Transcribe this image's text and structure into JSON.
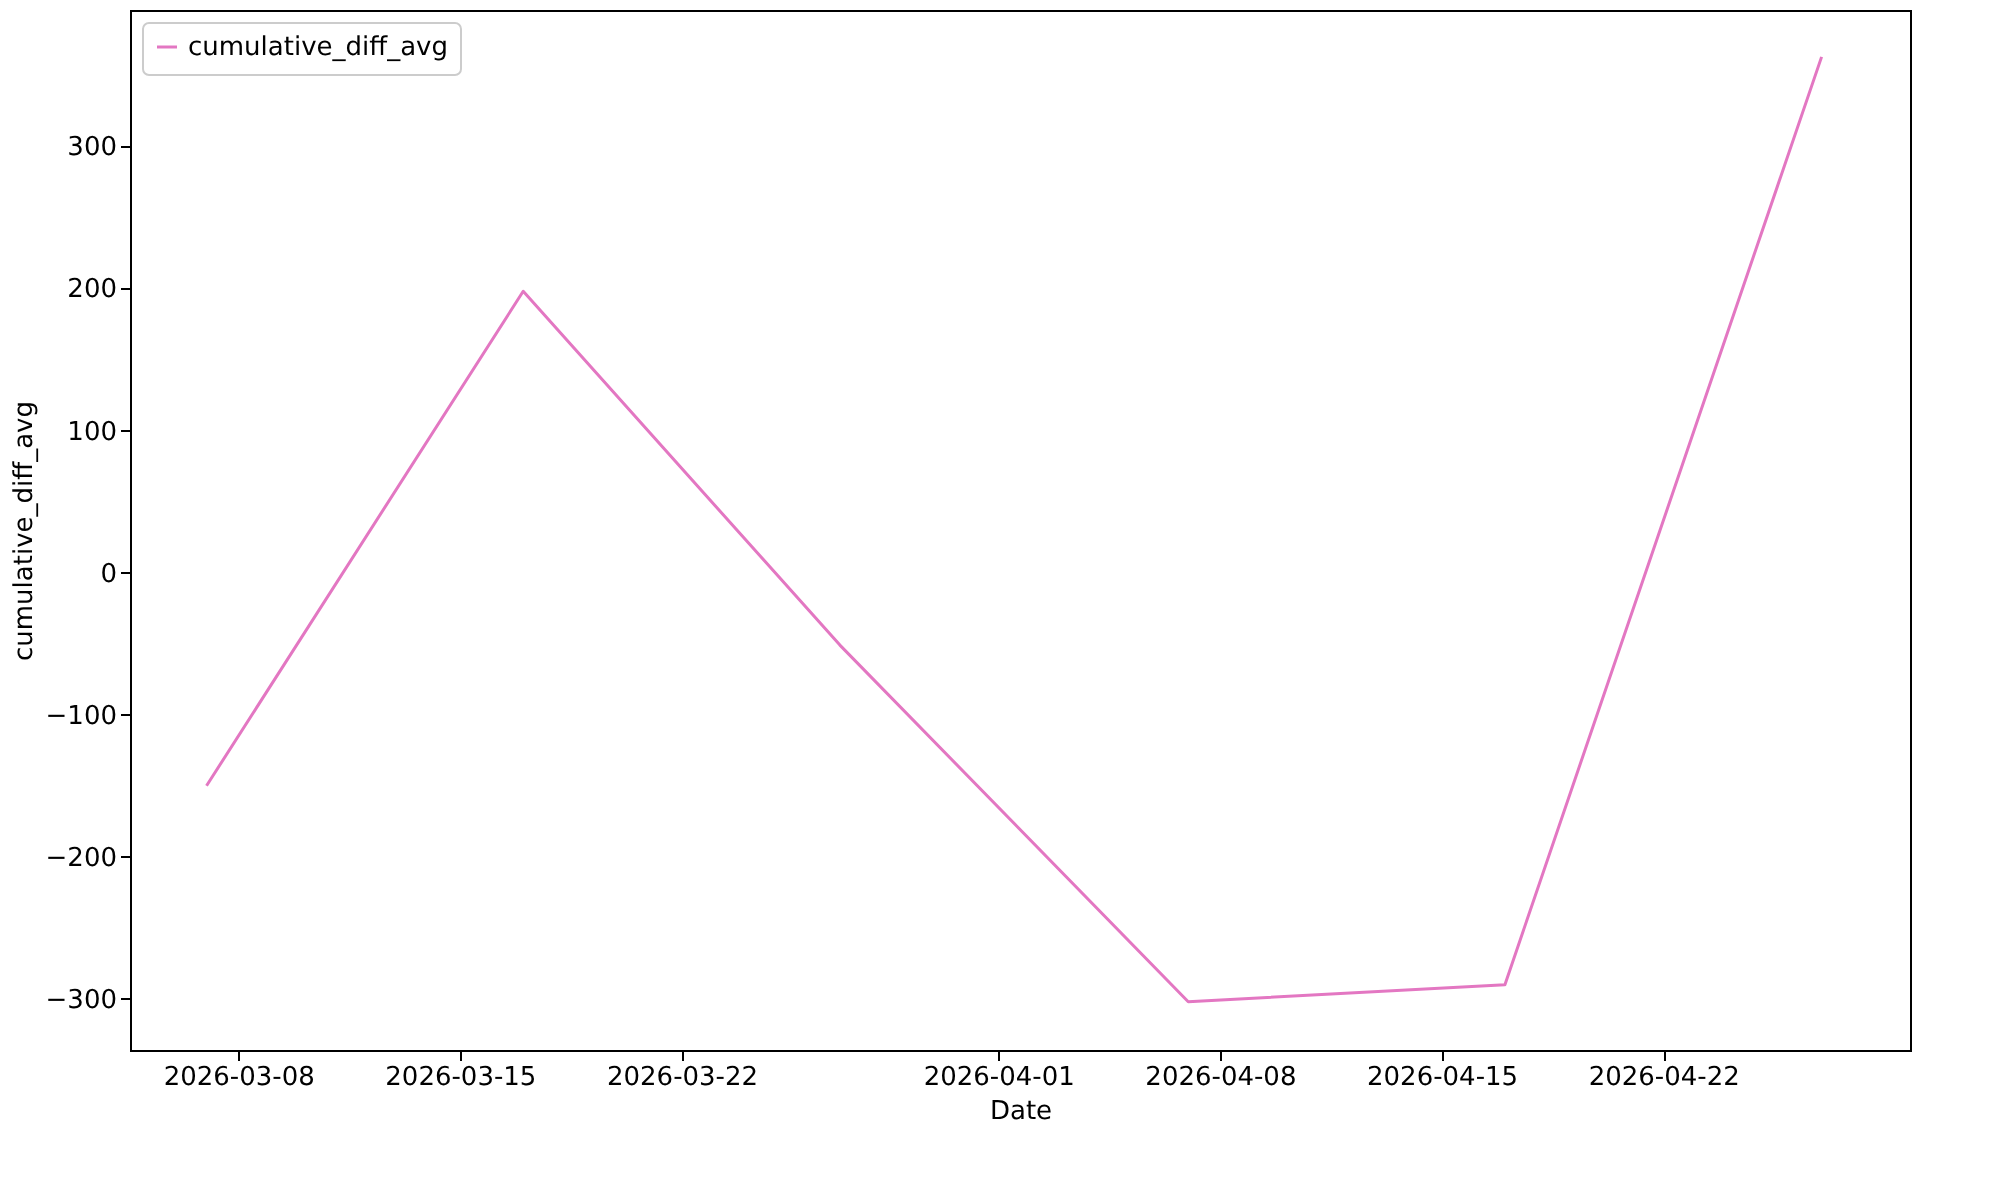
{
  "chart_data": {
    "type": "line",
    "xlabel": "Date",
    "ylabel": "cumulative_diff_avg",
    "x": [
      "2026-03-07",
      "2026-03-17",
      "2026-03-27",
      "2026-04-07",
      "2026-04-17",
      "2026-04-27"
    ],
    "series": [
      {
        "name": "cumulative_diff_avg",
        "color": "#e377c2",
        "values": [
          -150,
          198,
          -51,
          -302,
          -290,
          363
        ]
      }
    ],
    "xlim": [
      "2026-03-04T14:00",
      "2026-04-29T19:00"
    ],
    "xticks": [
      {
        "value": "2026-03-08",
        "label": "2026-03-08"
      },
      {
        "value": "2026-03-15",
        "label": "2026-03-15"
      },
      {
        "value": "2026-03-22",
        "label": "2026-03-22"
      },
      {
        "value": "2026-04-01",
        "label": "2026-04-01"
      },
      {
        "value": "2026-04-08",
        "label": "2026-04-08"
      },
      {
        "value": "2026-04-15",
        "label": "2026-04-15"
      },
      {
        "value": "2026-04-22",
        "label": "2026-04-22"
      }
    ],
    "ylim": [
      -336,
      396
    ],
    "yticks": [
      {
        "value": -300,
        "label": "−300"
      },
      {
        "value": -200,
        "label": "−200"
      },
      {
        "value": -100,
        "label": "−100"
      },
      0,
      100,
      200,
      300
    ],
    "grid": false,
    "legend": "top left",
    "marker": "none",
    "line_style": "solid"
  }
}
